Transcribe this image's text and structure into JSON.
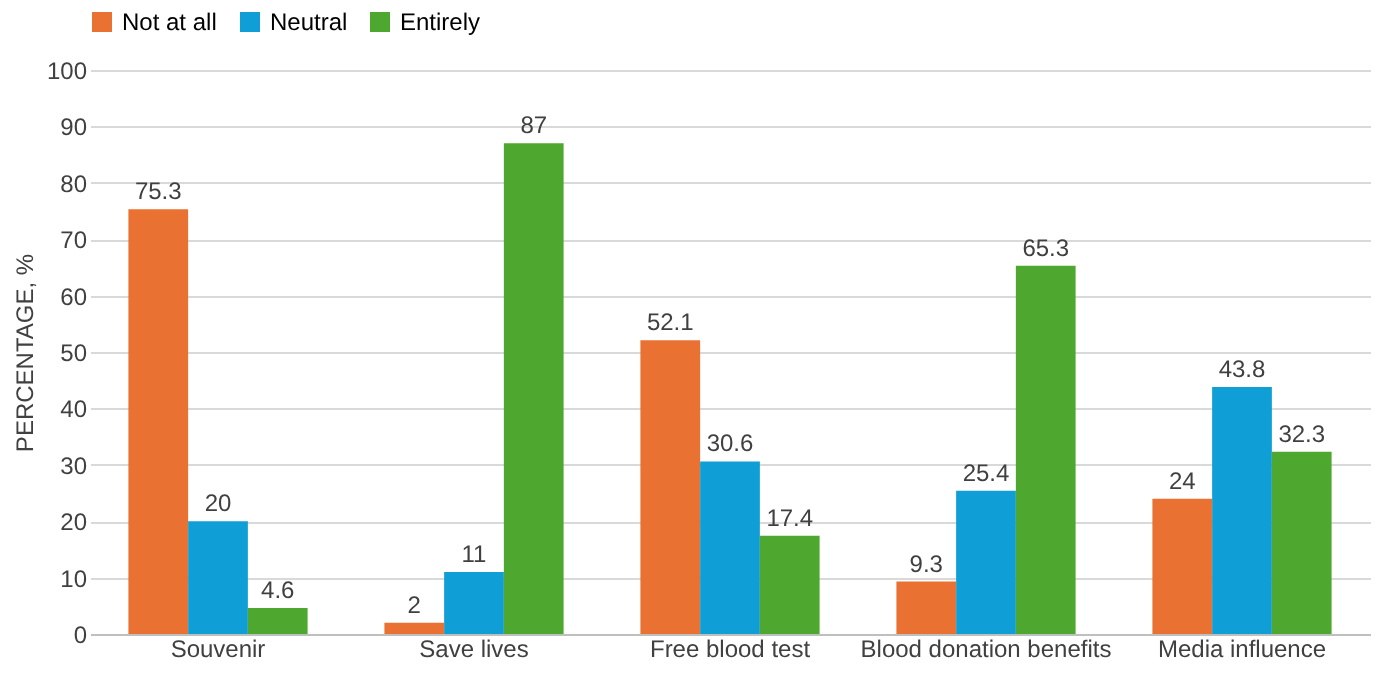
{
  "chart_data": {
    "type": "bar",
    "ylabel": "PERCENTAGE, %",
    "categories": [
      "Souvenir",
      "Save lives",
      "Free blood test",
      "Blood donation benefits",
      "Media influence"
    ],
    "series": [
      {
        "name": "Not at all",
        "color": "#e97132",
        "values": [
          75.3,
          2,
          52.1,
          9.3,
          24
        ]
      },
      {
        "name": "Neutral",
        "color": "#0f9ed5",
        "values": [
          20,
          11,
          30.6,
          25.4,
          43.8
        ]
      },
      {
        "name": "Entirely",
        "color": "#4ea72e",
        "values": [
          4.6,
          87,
          17.4,
          65.3,
          32.3
        ]
      }
    ],
    "ylim": [
      0,
      100
    ],
    "yticks": [
      0,
      10,
      20,
      30,
      40,
      50,
      60,
      70,
      80,
      90,
      100
    ],
    "grid": "y",
    "legend": "top",
    "data_labels": true
  }
}
